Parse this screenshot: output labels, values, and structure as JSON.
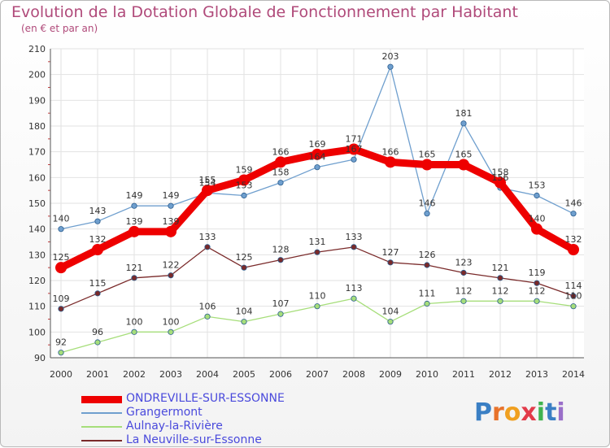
{
  "header": {
    "title": "Evolution de la Dotation Globale de Fonctionnement par Habitant",
    "subtitle": "(en € et par an)"
  },
  "logo": {
    "text": "Proxiti",
    "letters": [
      "P",
      "r",
      "o",
      "x",
      "i",
      "t",
      "i"
    ],
    "colors": [
      "#3a7fc4",
      "#e8732b",
      "#f0a020",
      "#e23b4a",
      "#3fb34f",
      "#3a7fc4",
      "#9a6fc9"
    ]
  },
  "chart_data": {
    "type": "line",
    "x": [
      "2000",
      "2001",
      "2002",
      "2003",
      "2004",
      "2005",
      "2006",
      "2007",
      "2008",
      "2009",
      "2010",
      "2011",
      "2012",
      "2013",
      "2014"
    ],
    "ylim": [
      90,
      210
    ],
    "yticks": [
      "90",
      "100",
      "110",
      "120",
      "130",
      "140",
      "150",
      "160",
      "170",
      "180",
      "190",
      "200",
      "210"
    ],
    "grid": true,
    "legend_position": "bottom-left",
    "series": [
      {
        "name": "ONDREVILLE-SUR-ESSONNE",
        "color": "#ee0000",
        "width": 9,
        "marker": 7,
        "values": [
          125,
          132,
          139,
          139,
          155,
          159,
          166,
          169,
          171,
          166,
          165,
          165,
          158,
          140,
          132
        ],
        "labels": [
          "125",
          "132",
          "139",
          "139",
          "155",
          "159",
          "166",
          "169",
          "171",
          "166",
          "165",
          "165",
          "158",
          "140",
          "132"
        ]
      },
      {
        "name": "Grangermont",
        "color": "#6f9fce",
        "width": 1.3,
        "marker": 3.2,
        "values": [
          140,
          143,
          149,
          149,
          154,
          153,
          158,
          164,
          167,
          203,
          146,
          181,
          156,
          153,
          146
        ],
        "labels": [
          "140",
          "143",
          "149",
          "149",
          "154",
          "153",
          "158",
          "164",
          "167",
          "203",
          "146",
          "181",
          "156",
          "153",
          "146"
        ]
      },
      {
        "name": "Aulnay-la-Rivière",
        "color": "#a6de7a",
        "width": 1.3,
        "marker": 3.2,
        "values": [
          92,
          96,
          100,
          100,
          106,
          104,
          107,
          110,
          113,
          104,
          111,
          112,
          112,
          112,
          110
        ],
        "labels": [
          "92",
          "96",
          "100",
          "100",
          "106",
          "104",
          "107",
          "110",
          "113",
          "104",
          "111",
          "112",
          "112",
          "112",
          "110"
        ]
      },
      {
        "name": "La Neuville-sur-Essonne",
        "color": "#7a2a2a",
        "width": 1.3,
        "marker": 3.2,
        "values": [
          109,
          115,
          121,
          122,
          133,
          125,
          128,
          131,
          133,
          127,
          126,
          123,
          121,
          119,
          114
        ],
        "labels": [
          "109",
          "115",
          "121",
          "122",
          "133",
          "125",
          "128",
          "131",
          "133",
          "127",
          "126",
          "123",
          "121",
          "119",
          "114"
        ]
      }
    ]
  }
}
